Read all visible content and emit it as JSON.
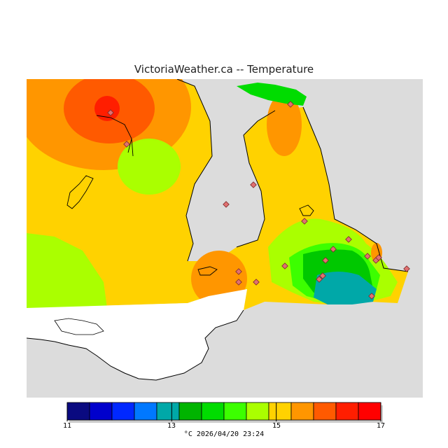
{
  "title": "VictoriaWeather.ca -- Temperature",
  "legend": {
    "min": 11,
    "max": 17,
    "colors": [
      "#0a0a80",
      "#0000cc",
      "#0028ff",
      "#0078ff",
      "#00a8a8",
      "#00b400",
      "#00dc00",
      "#3cff00",
      "#aaff00",
      "#ffd200",
      "#ff9600",
      "#ff5a00",
      "#ff1e00",
      "#ff0000"
    ],
    "tick_labels": [
      "11",
      "13",
      "15",
      "17"
    ],
    "unit_caption": "°C  2026/04/20 23:24"
  },
  "map": {
    "base_color": "#ffd200",
    "land_unmodeled_color": "#ffffff",
    "water_color": "#dcdcdc",
    "contour_colors": {
      "warm_center": "#ff3000",
      "warm": "#ff6600",
      "orange": "#ff9600",
      "yellow_green": "#aaff00",
      "light_green": "#3cff00",
      "green": "#00c800",
      "teal": "#00a8a8"
    },
    "station_count": 20
  }
}
